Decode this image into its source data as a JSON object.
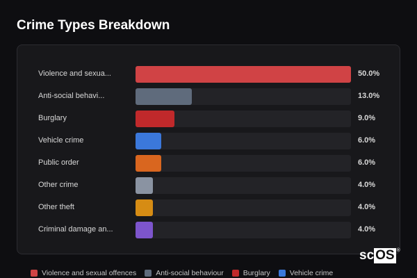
{
  "title": "Crime Types Breakdown",
  "logo": {
    "text1": "sc",
    "text2": "OS",
    "mark": "®"
  },
  "chart_data": {
    "type": "bar",
    "orientation": "horizontal",
    "title": "Crime Types Breakdown",
    "xlim": [
      0,
      50
    ],
    "categories": [
      "Violence and sexual offences",
      "Anti-social behaviour",
      "Burglary",
      "Vehicle crime",
      "Public order",
      "Other crime",
      "Other theft",
      "Criminal damage and arson"
    ],
    "display_labels": [
      "Violence and sexua...",
      "Anti-social behavi...",
      "Burglary",
      "Vehicle crime",
      "Public order",
      "Other crime",
      "Other theft",
      "Criminal damage an..."
    ],
    "values": [
      50.0,
      13.0,
      9.0,
      6.0,
      6.0,
      4.0,
      4.0,
      4.0
    ],
    "value_labels": [
      "50.0%",
      "13.0%",
      "9.0%",
      "6.0%",
      "6.0%",
      "4.0%",
      "4.0%",
      "4.0%"
    ],
    "colors": [
      "#d04345",
      "#5f6b7c",
      "#c0292b",
      "#3b78db",
      "#d9661f",
      "#8a93a2",
      "#d68c14",
      "#7d55cc"
    ],
    "legend": [
      "Violence and sexual offences",
      "Anti-social behaviour",
      "Burglary",
      "Vehicle crime"
    ],
    "legend_placement": "bottom"
  }
}
